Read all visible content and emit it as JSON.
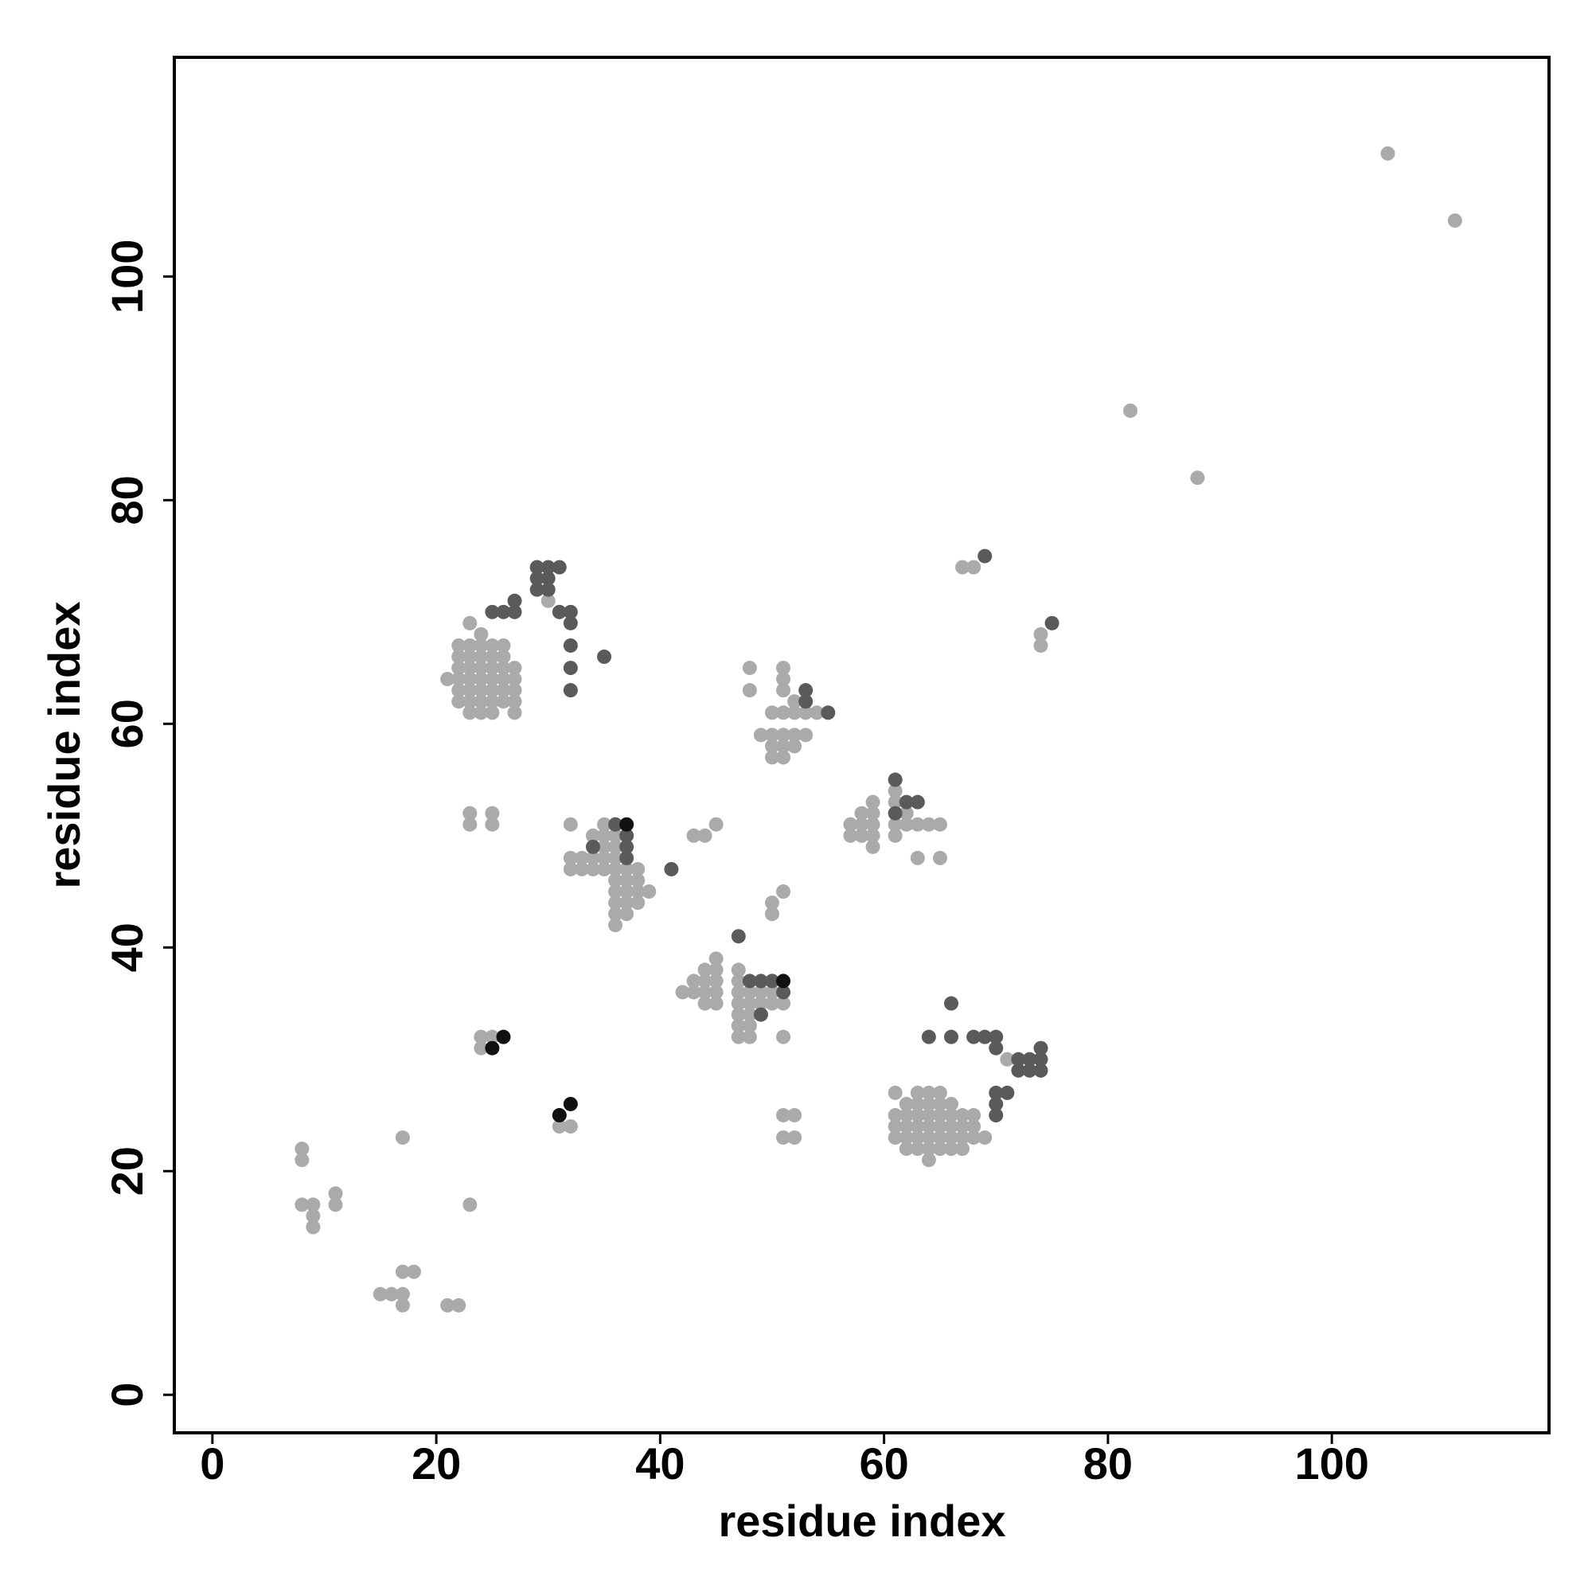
{
  "chart_data": {
    "type": "scatter",
    "x_label": "residue index",
    "y_label": "residue index",
    "xlim": [
      -3.4,
      119.4
    ],
    "ylim": [
      -3.4,
      119.6
    ],
    "xticks": [
      0,
      20,
      40,
      60,
      80,
      100
    ],
    "yticks": [
      0,
      20,
      40,
      60,
      80,
      100
    ],
    "series": [
      {
        "color": "#aaaaaa",
        "x": [
          105,
          111,
          82,
          88,
          67,
          68,
          74,
          74,
          22,
          22,
          22,
          22,
          22,
          22,
          23,
          23,
          23,
          23,
          23,
          23,
          23,
          23,
          24,
          24,
          24,
          24,
          24,
          24,
          24,
          24,
          25,
          25,
          25,
          25,
          25,
          25,
          25,
          26,
          26,
          26,
          26,
          26,
          26,
          27,
          27,
          27,
          27,
          27,
          21,
          23,
          23,
          25,
          25,
          30,
          32,
          32,
          32,
          33,
          33,
          34,
          34,
          34,
          34,
          35,
          35,
          35,
          35,
          35,
          36,
          36,
          36,
          36,
          36,
          36,
          36,
          36,
          36,
          36,
          37,
          37,
          37,
          37,
          37,
          38,
          38,
          38,
          38,
          39,
          43,
          44,
          45,
          48,
          48,
          51,
          51,
          51,
          50,
          51,
          52,
          52,
          53,
          54,
          49,
          50,
          50,
          50,
          51,
          51,
          51,
          52,
          52,
          53,
          50,
          50,
          51,
          57,
          57,
          58,
          58,
          58,
          59,
          59,
          59,
          59,
          59,
          61,
          61,
          61,
          61,
          61,
          62,
          62,
          63,
          64,
          65,
          63,
          65,
          42,
          43,
          43,
          44,
          44,
          44,
          44,
          45,
          45,
          45,
          45,
          45,
          47,
          47,
          47,
          47,
          47,
          47,
          47,
          48,
          48,
          48,
          48,
          48,
          49,
          49,
          50,
          50,
          50,
          51,
          51,
          24,
          24,
          25,
          31,
          32,
          31,
          51,
          52,
          51,
          52,
          61,
          61,
          61,
          62,
          62,
          62,
          62,
          62,
          63,
          63,
          63,
          63,
          63,
          64,
          64,
          64,
          64,
          64,
          65,
          65,
          65,
          65,
          65,
          66,
          66,
          66,
          66,
          66,
          67,
          67,
          67,
          67,
          68,
          68,
          68,
          61,
          63,
          64,
          65,
          64,
          69,
          71,
          8,
          8,
          8,
          9,
          9,
          9,
          11,
          11,
          17,
          23,
          15,
          16,
          17,
          17,
          17,
          18,
          21,
          22
        ],
        "y": [
          111,
          105,
          88,
          82,
          74,
          74,
          68,
          67,
          62,
          63,
          64,
          65,
          66,
          67,
          61,
          62,
          63,
          64,
          65,
          66,
          67,
          69,
          61,
          62,
          63,
          64,
          65,
          66,
          67,
          68,
          61,
          62,
          63,
          64,
          65,
          66,
          67,
          62,
          63,
          64,
          65,
          66,
          67,
          61,
          62,
          63,
          64,
          65,
          64,
          52,
          51,
          52,
          51,
          71,
          51,
          48,
          47,
          47,
          48,
          47,
          48,
          49,
          50,
          47,
          48,
          49,
          50,
          51,
          42,
          43,
          44,
          45,
          46,
          47,
          48,
          49,
          50,
          51,
          43,
          44,
          45,
          46,
          47,
          44,
          45,
          46,
          47,
          45,
          50,
          50,
          51,
          65,
          63,
          65,
          64,
          63,
          61,
          61,
          61,
          62,
          61,
          61,
          59,
          57,
          58,
          59,
          57,
          58,
          59,
          58,
          59,
          59,
          44,
          43,
          45,
          50,
          51,
          50,
          51,
          52,
          49,
          50,
          51,
          52,
          53,
          50,
          51,
          52,
          53,
          54,
          51,
          52,
          51,
          51,
          51,
          48,
          48,
          36,
          36,
          37,
          35,
          36,
          37,
          38,
          35,
          36,
          37,
          38,
          39,
          32,
          33,
          34,
          35,
          36,
          37,
          38,
          32,
          33,
          34,
          35,
          36,
          35,
          36,
          35,
          36,
          37,
          35,
          32,
          31,
          32,
          32,
          24,
          24,
          25,
          25,
          25,
          23,
          23,
          23,
          24,
          25,
          22,
          23,
          24,
          25,
          26,
          22,
          23,
          24,
          25,
          26,
          22,
          23,
          24,
          25,
          26,
          22,
          23,
          24,
          25,
          26,
          22,
          23,
          24,
          25,
          26,
          22,
          23,
          24,
          25,
          23,
          24,
          25,
          27,
          27,
          27,
          27,
          21,
          23,
          30,
          22,
          21,
          17,
          17,
          16,
          15,
          18,
          17,
          23,
          17,
          9,
          9,
          9,
          8,
          11,
          11,
          8,
          8
        ]
      },
      {
        "color": "#5a5a5a",
        "x": [
          29,
          30,
          31,
          29,
          30,
          29,
          30,
          25,
          26,
          27,
          27,
          31,
          32,
          32,
          32,
          32,
          32,
          35,
          53,
          53,
          55,
          69,
          75,
          61,
          62,
          63,
          61,
          36,
          37,
          37,
          37,
          34,
          41,
          47,
          48,
          49,
          50,
          51,
          49,
          64,
          66,
          68,
          69,
          70,
          70,
          72,
          73,
          74,
          74,
          72,
          73,
          74,
          70,
          71,
          70,
          70,
          66
        ],
        "y": [
          74,
          74,
          74,
          73,
          73,
          72,
          72,
          70,
          70,
          70,
          71,
          70,
          70,
          69,
          67,
          65,
          63,
          66,
          63,
          62,
          61,
          75,
          69,
          55,
          53,
          53,
          52,
          51,
          50,
          49,
          48,
          49,
          47,
          41,
          37,
          37,
          37,
          36,
          34,
          32,
          32,
          32,
          32,
          32,
          31,
          30,
          30,
          30,
          31,
          29,
          29,
          29,
          27,
          27,
          26,
          25,
          35
        ]
      },
      {
        "color": "#111111",
        "x": [
          25,
          26,
          31,
          32,
          37,
          51
        ],
        "y": [
          31,
          32,
          25,
          26,
          51,
          37
        ]
      }
    ]
  }
}
